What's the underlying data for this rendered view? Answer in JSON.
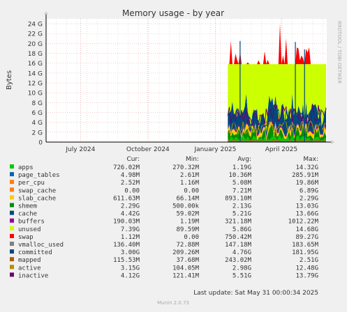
{
  "chart_data": {
    "type": "area",
    "title": "Memory usage - by year",
    "ylabel": "Bytes",
    "side_label": "RRDTOOL / TOBI OETIKER",
    "y_ticks": [
      "0",
      "2 G",
      "4 G",
      "6 G",
      "8 G",
      "10 G",
      "12 G",
      "14 G",
      "16 G",
      "18 G",
      "20 G",
      "22 G",
      "24 G"
    ],
    "ylim": [
      0,
      25
    ],
    "y_unit": "G",
    "x_ticks": [
      "July 2024",
      "October 2024",
      "January 2025",
      "April 2025"
    ],
    "xlim": [
      "2024-05-15",
      "2025-06-02"
    ],
    "x_tick_dates": [
      "2024-07-01",
      "2024-10-01",
      "2025-01-01",
      "2025-04-01"
    ],
    "data_start": "2025-01-18",
    "grid": true,
    "columns": [
      "Cur:",
      "Min:",
      "Avg:",
      "Max:"
    ],
    "series": [
      {
        "name": "apps",
        "color": "#00cc00",
        "cur": "726.02M",
        "min": "270.32M",
        "avg": "1.19G",
        "max": "14.32G"
      },
      {
        "name": "page_tables",
        "color": "#0066b3",
        "cur": "4.98M",
        "min": "2.61M",
        "avg": "10.36M",
        "max": "285.91M"
      },
      {
        "name": "per_cpu",
        "color": "#ff8000",
        "cur": "2.52M",
        "min": "1.16M",
        "avg": "5.08M",
        "max": "19.86M"
      },
      {
        "name": "swap_cache",
        "color": "#ff8000",
        "cur": "0.00",
        "min": "0.00",
        "avg": "7.21M",
        "max": "6.89G"
      },
      {
        "name": "slab_cache",
        "color": "#ffcc00",
        "cur": "611.63M",
        "min": "66.14M",
        "avg": "893.10M",
        "max": "2.29G"
      },
      {
        "name": "shmem",
        "color": "#008f00",
        "cur": "2.29G",
        "min": "500.00k",
        "avg": "2.13G",
        "max": "13.03G"
      },
      {
        "name": "cache",
        "color": "#00487d",
        "cur": "4.42G",
        "min": "59.02M",
        "avg": "5.21G",
        "max": "13.66G"
      },
      {
        "name": "buffers",
        "color": "#990099",
        "cur": "190.03M",
        "min": "1.19M",
        "avg": "321.18M",
        "max": "1012.22M"
      },
      {
        "name": "unused",
        "color": "#ccff00",
        "cur": "7.39G",
        "min": "89.59M",
        "avg": "5.86G",
        "max": "14.68G"
      },
      {
        "name": "swap",
        "color": "#ff0000",
        "cur": "1.12M",
        "min": "0.00",
        "avg": "750.42M",
        "max": "89.27G"
      },
      {
        "name": "vmalloc_used",
        "color": "#808080",
        "cur": "136.40M",
        "min": "72.88M",
        "avg": "147.18M",
        "max": "183.65M"
      },
      {
        "name": "committed",
        "color": "#00487d",
        "cur": "3.00G",
        "min": "209.26M",
        "avg": "4.76G",
        "max": "181.95G"
      },
      {
        "name": "mapped",
        "color": "#b35a00",
        "cur": "115.53M",
        "min": "37.68M",
        "avg": "243.02M",
        "max": "2.51G"
      },
      {
        "name": "active",
        "color": "#b38f00",
        "cur": "3.15G",
        "min": "104.05M",
        "avg": "2.98G",
        "max": "12.48G"
      },
      {
        "name": "inactive",
        "color": "#6b006b",
        "cur": "4.12G",
        "min": "121.41M",
        "avg": "5.51G",
        "max": "13.79G"
      }
    ],
    "last_update": "Last update: Sat May 31 00:00:34 2025",
    "footer": "Munin 2.0.73"
  }
}
